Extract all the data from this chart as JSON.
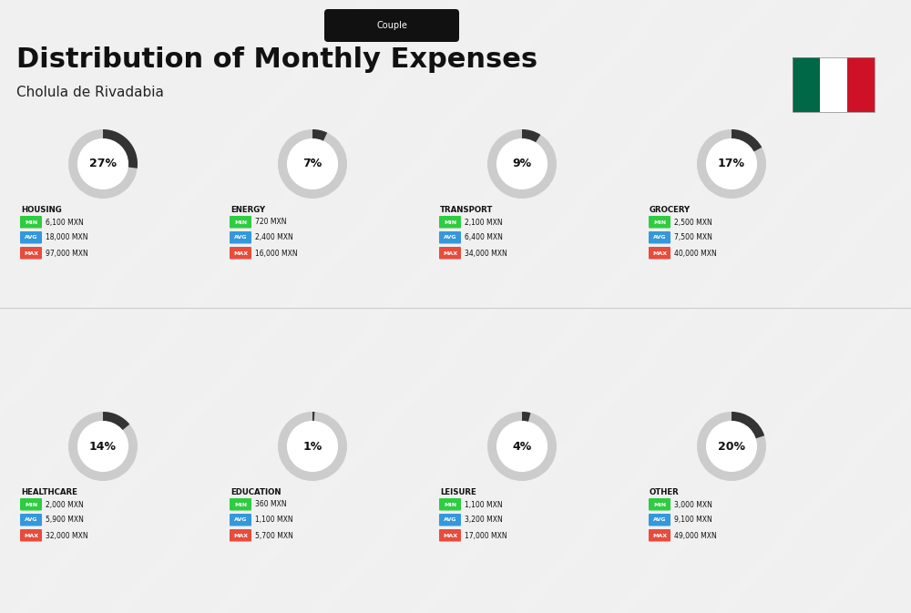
{
  "title": "Distribution of Monthly Expenses",
  "subtitle": "Cholula de Rivadabia",
  "badge": "Couple",
  "background_color": "#f0f0f0",
  "categories": [
    {
      "name": "HOUSING",
      "pct": 27,
      "min": "6,100 MXN",
      "avg": "18,000 MXN",
      "max": "97,000 MXN",
      "row": 0,
      "col": 0
    },
    {
      "name": "ENERGY",
      "pct": 7,
      "min": "720 MXN",
      "avg": "2,400 MXN",
      "max": "16,000 MXN",
      "row": 0,
      "col": 1
    },
    {
      "name": "TRANSPORT",
      "pct": 9,
      "min": "2,100 MXN",
      "avg": "6,400 MXN",
      "max": "34,000 MXN",
      "row": 0,
      "col": 2
    },
    {
      "name": "GROCERY",
      "pct": 17,
      "min": "2,500 MXN",
      "avg": "7,500 MXN",
      "max": "40,000 MXN",
      "row": 0,
      "col": 3
    },
    {
      "name": "HEALTHCARE",
      "pct": 14,
      "min": "2,000 MXN",
      "avg": "5,900 MXN",
      "max": "32,000 MXN",
      "row": 1,
      "col": 0
    },
    {
      "name": "EDUCATION",
      "pct": 1,
      "min": "360 MXN",
      "avg": "1,100 MXN",
      "max": "5,700 MXN",
      "row": 1,
      "col": 1
    },
    {
      "name": "LEISURE",
      "pct": 4,
      "min": "1,100 MXN",
      "avg": "3,200 MXN",
      "max": "17,000 MXN",
      "row": 1,
      "col": 2
    },
    {
      "name": "OTHER",
      "pct": 20,
      "min": "3,000 MXN",
      "avg": "9,100 MXN",
      "max": "49,000 MXN",
      "row": 1,
      "col": 3
    }
  ],
  "color_min": "#2ecc40",
  "color_avg": "#3498db",
  "color_max": "#e74c3c",
  "arc_color": "#333333",
  "arc_bg_color": "#cccccc",
  "title_color": "#111111",
  "subtitle_color": "#222222",
  "badge_bg": "#111111",
  "badge_text": "#ffffff",
  "category_name_color": "#111111"
}
